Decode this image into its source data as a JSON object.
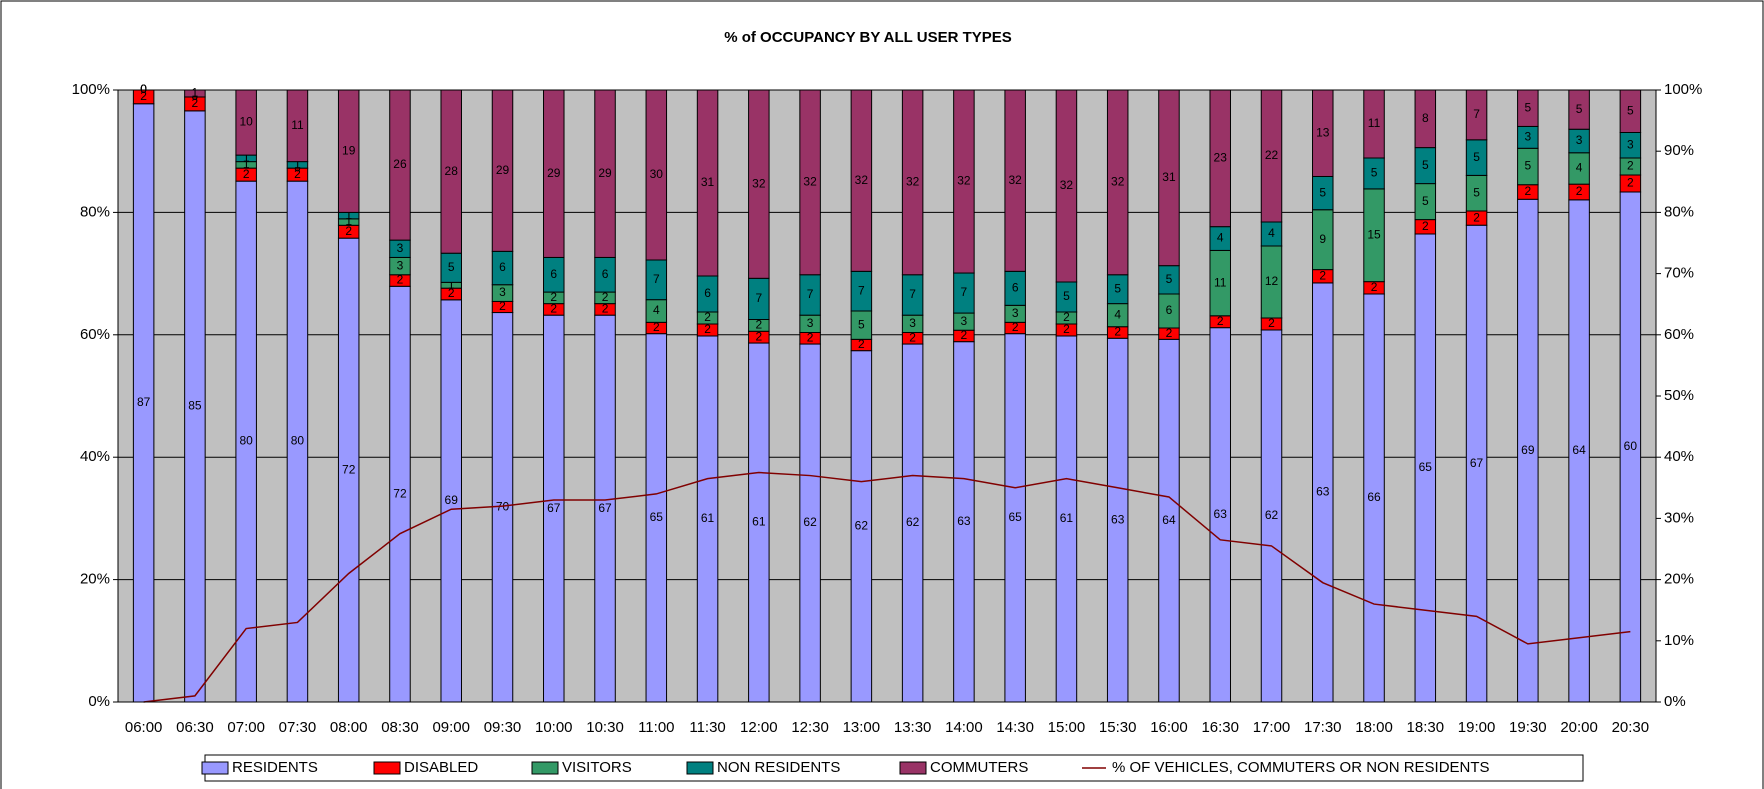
{
  "chart_data": {
    "type": "bar",
    "stacking": "percent",
    "title": "% of OCCUPANCY BY ALL USER TYPES",
    "categories": [
      "06:00",
      "06:30",
      "07:00",
      "07:30",
      "08:00",
      "08:30",
      "09:00",
      "09:30",
      "10:00",
      "10:30",
      "11:00",
      "11:30",
      "12:00",
      "12:30",
      "13:00",
      "13:30",
      "14:00",
      "14:30",
      "15:00",
      "15:30",
      "16:00",
      "16:30",
      "17:00",
      "17:30",
      "18:00",
      "18:30",
      "19:00",
      "19:30",
      "20:00",
      "20:30"
    ],
    "series": [
      {
        "name": "RESIDENTS",
        "color": "#9999ff",
        "values": [
          87,
          85,
          80,
          80,
          72,
          72,
          69,
          70,
          67,
          67,
          65,
          61,
          61,
          62,
          62,
          62,
          63,
          65,
          61,
          63,
          64,
          63,
          62,
          63,
          66,
          65,
          67,
          69,
          64,
          60
        ]
      },
      {
        "name": "DISABLED",
        "color": "#ff0000",
        "values": [
          2,
          2,
          2,
          2,
          2,
          2,
          2,
          2,
          2,
          2,
          2,
          2,
          2,
          2,
          2,
          2,
          2,
          2,
          2,
          2,
          2,
          2,
          2,
          2,
          2,
          2,
          2,
          2,
          2,
          2
        ]
      },
      {
        "name": "VISITORS",
        "color": "#339966",
        "values": [
          0,
          0,
          1,
          0,
          1,
          3,
          1,
          3,
          2,
          2,
          4,
          2,
          2,
          3,
          5,
          3,
          3,
          3,
          2,
          4,
          6,
          11,
          12,
          9,
          15,
          5,
          5,
          5,
          4,
          2
        ]
      },
      {
        "name": "NON RESIDENTS",
        "color": "#008080",
        "values": [
          0,
          0,
          1,
          1,
          1,
          3,
          5,
          6,
          6,
          6,
          7,
          6,
          7,
          7,
          7,
          7,
          7,
          6,
          5,
          5,
          5,
          4,
          4,
          5,
          5,
          5,
          5,
          3,
          3,
          3
        ]
      },
      {
        "name": "COMMUTERS",
        "color": "#993366",
        "values": [
          0,
          1,
          10,
          11,
          19,
          26,
          28,
          29,
          29,
          29,
          30,
          31,
          32,
          32,
          32,
          32,
          32,
          32,
          32,
          32,
          31,
          23,
          22,
          13,
          11,
          8,
          7,
          5,
          5,
          5
        ]
      },
      {
        "name": "% OF VEHICLES, COMMUTERS OR NON RESIDENTS",
        "color": "#800000",
        "type": "line",
        "axis": "y2",
        "values": [
          0,
          1,
          12,
          13,
          21,
          27.5,
          31.5,
          32,
          33,
          33,
          34,
          36.5,
          37.5,
          37,
          36,
          37,
          36.5,
          35,
          36.5,
          35,
          33.5,
          26.5,
          25.5,
          19.5,
          16,
          15,
          14,
          9.5,
          10.5,
          11.5
        ]
      }
    ],
    "ylim": [
      0,
      100
    ],
    "yticks": [
      {
        "value": 0,
        "label": "0%"
      },
      {
        "value": 20,
        "label": "20%"
      },
      {
        "value": 40,
        "label": "40%"
      },
      {
        "value": 60,
        "label": "60%"
      },
      {
        "value": 80,
        "label": "80%"
      },
      {
        "value": 100,
        "label": "100%"
      }
    ],
    "y2lim": [
      0,
      100
    ],
    "y2ticks": [
      {
        "value": 0,
        "label": "0%"
      },
      {
        "value": 10,
        "label": "10%"
      },
      {
        "value": 20,
        "label": "20%"
      },
      {
        "value": 30,
        "label": "30%"
      },
      {
        "value": 40,
        "label": "40%"
      },
      {
        "value": 50,
        "label": "50%"
      },
      {
        "value": 60,
        "label": "60%"
      },
      {
        "value": 70,
        "label": "70%"
      },
      {
        "value": 80,
        "label": "80%"
      },
      {
        "value": 90,
        "label": "90%"
      },
      {
        "value": 100,
        "label": "100%"
      }
    ],
    "grid": true,
    "legend": "bottom",
    "plot_background": "#c0c0c0"
  }
}
